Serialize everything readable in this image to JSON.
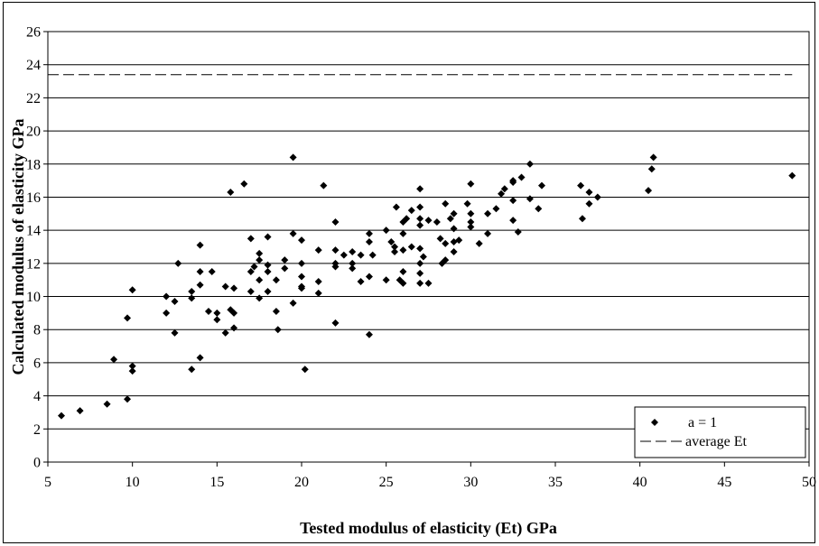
{
  "chart_data": {
    "type": "scatter",
    "title": "",
    "xlabel": "Tested modulus of elasticity (Et) GPa",
    "ylabel": "Calculated modulus of elasticity GPa",
    "xlim": [
      5,
      50
    ],
    "ylim": [
      0,
      26
    ],
    "xticks": [
      5,
      10,
      15,
      20,
      25,
      30,
      35,
      40,
      45,
      50
    ],
    "yticks": [
      0,
      2,
      4,
      6,
      8,
      10,
      12,
      14,
      16,
      18,
      20,
      22,
      24,
      26
    ],
    "grid": "horizontal",
    "legend_position": "bottom-right",
    "series": [
      {
        "name": "a = 1",
        "marker": "diamond",
        "color": "#000000",
        "points": [
          [
            5.8,
            2.8
          ],
          [
            6.9,
            3.1
          ],
          [
            8.5,
            3.5
          ],
          [
            9.7,
            3.8
          ],
          [
            8.9,
            6.2
          ],
          [
            10.0,
            5.8
          ],
          [
            10.0,
            5.5
          ],
          [
            9.7,
            8.7
          ],
          [
            10.0,
            10.4
          ],
          [
            12.0,
            10.0
          ],
          [
            12.0,
            9.0
          ],
          [
            12.5,
            7.8
          ],
          [
            12.5,
            9.7
          ],
          [
            12.7,
            12.0
          ],
          [
            13.5,
            5.6
          ],
          [
            13.5,
            10.3
          ],
          [
            13.5,
            9.9
          ],
          [
            14.0,
            6.3
          ],
          [
            14.0,
            10.7
          ],
          [
            14.0,
            11.5
          ],
          [
            14.0,
            13.1
          ],
          [
            14.5,
            9.1
          ],
          [
            14.7,
            11.5
          ],
          [
            15.0,
            8.6
          ],
          [
            15.0,
            9.0
          ],
          [
            15.5,
            10.6
          ],
          [
            15.5,
            7.8
          ],
          [
            15.8,
            9.2
          ],
          [
            15.8,
            16.3
          ],
          [
            16.0,
            8.1
          ],
          [
            16.0,
            9.0
          ],
          [
            16.0,
            10.5
          ],
          [
            16.6,
            16.8
          ],
          [
            17.0,
            10.3
          ],
          [
            17.0,
            13.5
          ],
          [
            17.0,
            11.5
          ],
          [
            17.2,
            11.8
          ],
          [
            17.5,
            9.9
          ],
          [
            17.5,
            11.0
          ],
          [
            17.5,
            12.2
          ],
          [
            17.5,
            12.6
          ],
          [
            18.0,
            13.6
          ],
          [
            18.0,
            11.9
          ],
          [
            18.0,
            11.5
          ],
          [
            18.0,
            10.3
          ],
          [
            18.5,
            11.0
          ],
          [
            18.5,
            9.1
          ],
          [
            18.6,
            8.0
          ],
          [
            19.0,
            11.7
          ],
          [
            19.0,
            12.2
          ],
          [
            19.5,
            13.8
          ],
          [
            19.5,
            18.4
          ],
          [
            19.5,
            9.6
          ],
          [
            20.0,
            13.4
          ],
          [
            20.0,
            12.0
          ],
          [
            20.0,
            11.2
          ],
          [
            20.0,
            10.6
          ],
          [
            20.0,
            10.5
          ],
          [
            20.2,
            5.6
          ],
          [
            21.0,
            10.2
          ],
          [
            21.0,
            12.8
          ],
          [
            21.0,
            10.9
          ],
          [
            21.3,
            16.7
          ],
          [
            22.0,
            14.5
          ],
          [
            22.0,
            12.8
          ],
          [
            22.0,
            12.0
          ],
          [
            22.0,
            11.8
          ],
          [
            22.0,
            8.4
          ],
          [
            22.5,
            12.5
          ],
          [
            23.0,
            12.7
          ],
          [
            23.0,
            12.0
          ],
          [
            23.0,
            11.7
          ],
          [
            23.5,
            10.9
          ],
          [
            23.5,
            12.5
          ],
          [
            24.0,
            13.8
          ],
          [
            24.0,
            13.3
          ],
          [
            24.0,
            11.2
          ],
          [
            24.0,
            7.7
          ],
          [
            24.2,
            12.5
          ],
          [
            25.0,
            11.0
          ],
          [
            25.0,
            14.0
          ],
          [
            25.3,
            13.3
          ],
          [
            25.5,
            13.0
          ],
          [
            25.5,
            12.7
          ],
          [
            25.6,
            15.4
          ],
          [
            25.8,
            11.0
          ],
          [
            26.0,
            14.5
          ],
          [
            26.0,
            13.8
          ],
          [
            26.0,
            12.8
          ],
          [
            26.0,
            11.5
          ],
          [
            26.0,
            10.8
          ],
          [
            26.2,
            14.7
          ],
          [
            26.5,
            15.2
          ],
          [
            26.5,
            13.0
          ],
          [
            27.0,
            16.5
          ],
          [
            27.0,
            15.4
          ],
          [
            27.0,
            14.7
          ],
          [
            27.0,
            14.3
          ],
          [
            27.0,
            12.9
          ],
          [
            27.0,
            12.0
          ],
          [
            27.0,
            11.4
          ],
          [
            27.0,
            10.8
          ],
          [
            27.2,
            12.4
          ],
          [
            27.5,
            14.6
          ],
          [
            27.5,
            10.8
          ],
          [
            28.0,
            14.5
          ],
          [
            28.2,
            13.5
          ],
          [
            28.3,
            12.0
          ],
          [
            28.5,
            15.6
          ],
          [
            28.5,
            13.2
          ],
          [
            28.5,
            12.2
          ],
          [
            28.8,
            14.7
          ],
          [
            29.0,
            15.0
          ],
          [
            29.0,
            14.1
          ],
          [
            29.0,
            13.3
          ],
          [
            29.0,
            12.7
          ],
          [
            29.3,
            13.4
          ],
          [
            29.8,
            15.6
          ],
          [
            30.0,
            16.8
          ],
          [
            30.0,
            15.0
          ],
          [
            30.0,
            14.5
          ],
          [
            30.0,
            14.2
          ],
          [
            30.5,
            13.2
          ],
          [
            31.0,
            15.0
          ],
          [
            31.0,
            13.8
          ],
          [
            31.5,
            15.3
          ],
          [
            31.8,
            16.2
          ],
          [
            32.0,
            16.5
          ],
          [
            32.5,
            17.0
          ],
          [
            32.5,
            16.9
          ],
          [
            32.5,
            15.8
          ],
          [
            32.5,
            14.6
          ],
          [
            32.8,
            13.9
          ],
          [
            33.0,
            17.2
          ],
          [
            33.5,
            18.0
          ],
          [
            33.5,
            15.9
          ],
          [
            34.0,
            15.3
          ],
          [
            34.2,
            16.7
          ],
          [
            36.5,
            16.7
          ],
          [
            36.6,
            14.7
          ],
          [
            37.0,
            16.3
          ],
          [
            37.0,
            15.6
          ],
          [
            37.5,
            16.0
          ],
          [
            40.5,
            16.4
          ],
          [
            40.7,
            17.7
          ],
          [
            40.8,
            18.4
          ],
          [
            49.0,
            17.3
          ]
        ]
      },
      {
        "name": "average Et",
        "type": "line",
        "style": "dashed",
        "color": "#000000",
        "points": [
          [
            5,
            23.4
          ],
          [
            49,
            23.4
          ]
        ]
      }
    ]
  }
}
